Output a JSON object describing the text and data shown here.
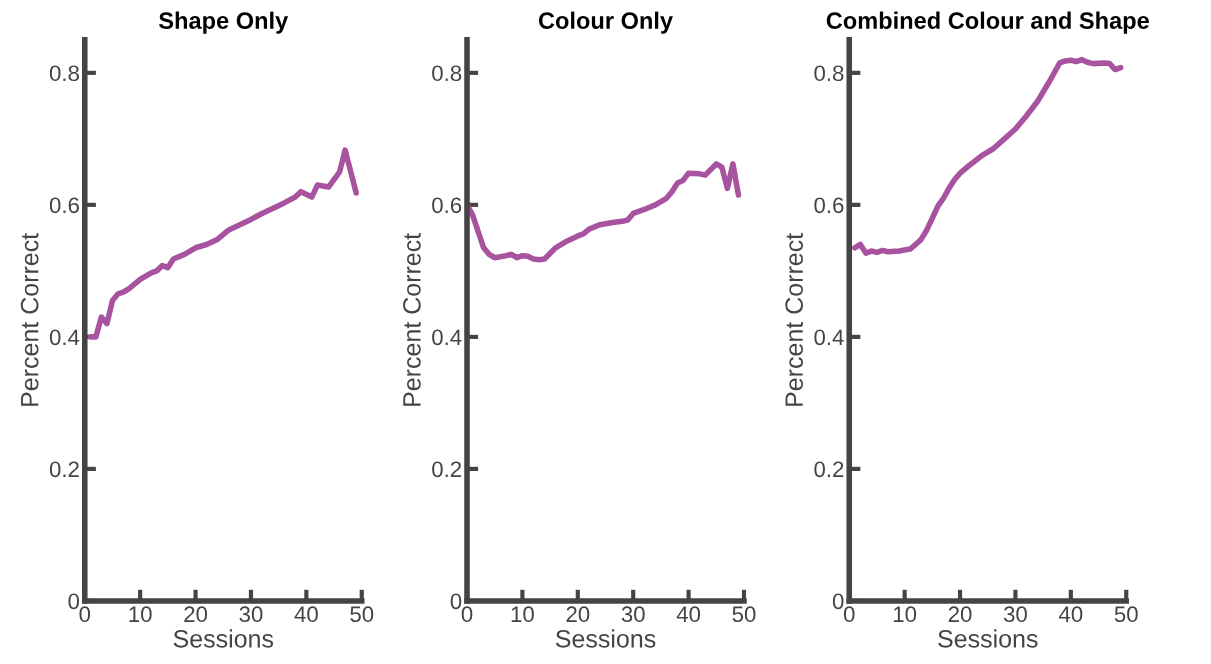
{
  "chart_data": [
    {
      "type": "line",
      "title": "Shape Only",
      "xlabel": "Sessions",
      "ylabel": "Percent Correct",
      "xlim": [
        0,
        50
      ],
      "xticks": [
        0,
        10,
        20,
        30,
        40,
        50
      ],
      "ylim": [
        0,
        0.85
      ],
      "yticks": [
        0,
        0.2,
        0.4,
        0.6,
        0.8
      ],
      "grid": false,
      "x": [
        1,
        2,
        3,
        4,
        5,
        6,
        7,
        8,
        10,
        12,
        13,
        14,
        15,
        16,
        18,
        20,
        22,
        24,
        26,
        28,
        30,
        32,
        34,
        36,
        38,
        39,
        41,
        42,
        44,
        46,
        47,
        49
      ],
      "series": [
        {
          "color": "#a8539f",
          "values": [
            0.4,
            0.4,
            0.43,
            0.42,
            0.455,
            0.465,
            0.468,
            0.473,
            0.487,
            0.497,
            0.5,
            0.508,
            0.505,
            0.518,
            0.525,
            0.535,
            0.54,
            0.548,
            0.562,
            0.57,
            0.578,
            0.587,
            0.595,
            0.603,
            0.612,
            0.62,
            0.612,
            0.63,
            0.627,
            0.65,
            0.683,
            0.618
          ]
        }
      ]
    },
    {
      "type": "line",
      "title": "Colour Only",
      "xlabel": "Sessions",
      "ylabel": "Percent Correct",
      "xlim": [
        0,
        50
      ],
      "xticks": [
        0,
        10,
        20,
        30,
        40,
        50
      ],
      "ylim": [
        0,
        0.85
      ],
      "yticks": [
        0,
        0.2,
        0.4,
        0.6,
        0.8
      ],
      "grid": false,
      "x": [
        0,
        1,
        2,
        3,
        4,
        5,
        7,
        8,
        9,
        10,
        11,
        12,
        13,
        14,
        16,
        18,
        20,
        21,
        22,
        24,
        26,
        28,
        29,
        30,
        32,
        34,
        36,
        37,
        38,
        39,
        40,
        42,
        43,
        45,
        46,
        47,
        48,
        49
      ],
      "series": [
        {
          "color": "#a8539f",
          "values": [
            0.6,
            0.585,
            0.56,
            0.535,
            0.525,
            0.52,
            0.523,
            0.525,
            0.52,
            0.523,
            0.522,
            0.518,
            0.517,
            0.518,
            0.535,
            0.545,
            0.553,
            0.556,
            0.563,
            0.57,
            0.573,
            0.575,
            0.577,
            0.587,
            0.593,
            0.6,
            0.61,
            0.62,
            0.633,
            0.637,
            0.648,
            0.647,
            0.645,
            0.662,
            0.657,
            0.625,
            0.662,
            0.615
          ]
        }
      ]
    },
    {
      "type": "line",
      "title": "Combined Colour and Shape",
      "xlabel": "Sessions",
      "ylabel": "Percent Correct",
      "xlim": [
        0,
        50
      ],
      "xticks": [
        0,
        10,
        20,
        30,
        40,
        50
      ],
      "ylim": [
        0,
        0.85
      ],
      "yticks": [
        0,
        0.2,
        0.4,
        0.6,
        0.8
      ],
      "grid": false,
      "x": [
        1,
        2,
        3,
        4,
        5,
        6,
        7,
        9,
        11,
        12,
        13,
        14,
        15,
        16,
        17,
        18,
        19,
        20,
        22,
        24,
        26,
        28,
        30,
        32,
        34,
        36,
        37,
        38,
        39,
        40,
        41,
        42,
        43,
        44,
        46,
        47,
        48,
        49
      ],
      "series": [
        {
          "color": "#a8539f",
          "values": [
            0.535,
            0.54,
            0.527,
            0.53,
            0.528,
            0.531,
            0.529,
            0.53,
            0.533,
            0.54,
            0.548,
            0.562,
            0.58,
            0.598,
            0.61,
            0.625,
            0.638,
            0.648,
            0.662,
            0.675,
            0.685,
            0.7,
            0.715,
            0.735,
            0.757,
            0.785,
            0.8,
            0.815,
            0.818,
            0.819,
            0.817,
            0.82,
            0.816,
            0.814,
            0.815,
            0.814,
            0.805,
            0.808
          ]
        }
      ]
    }
  ]
}
